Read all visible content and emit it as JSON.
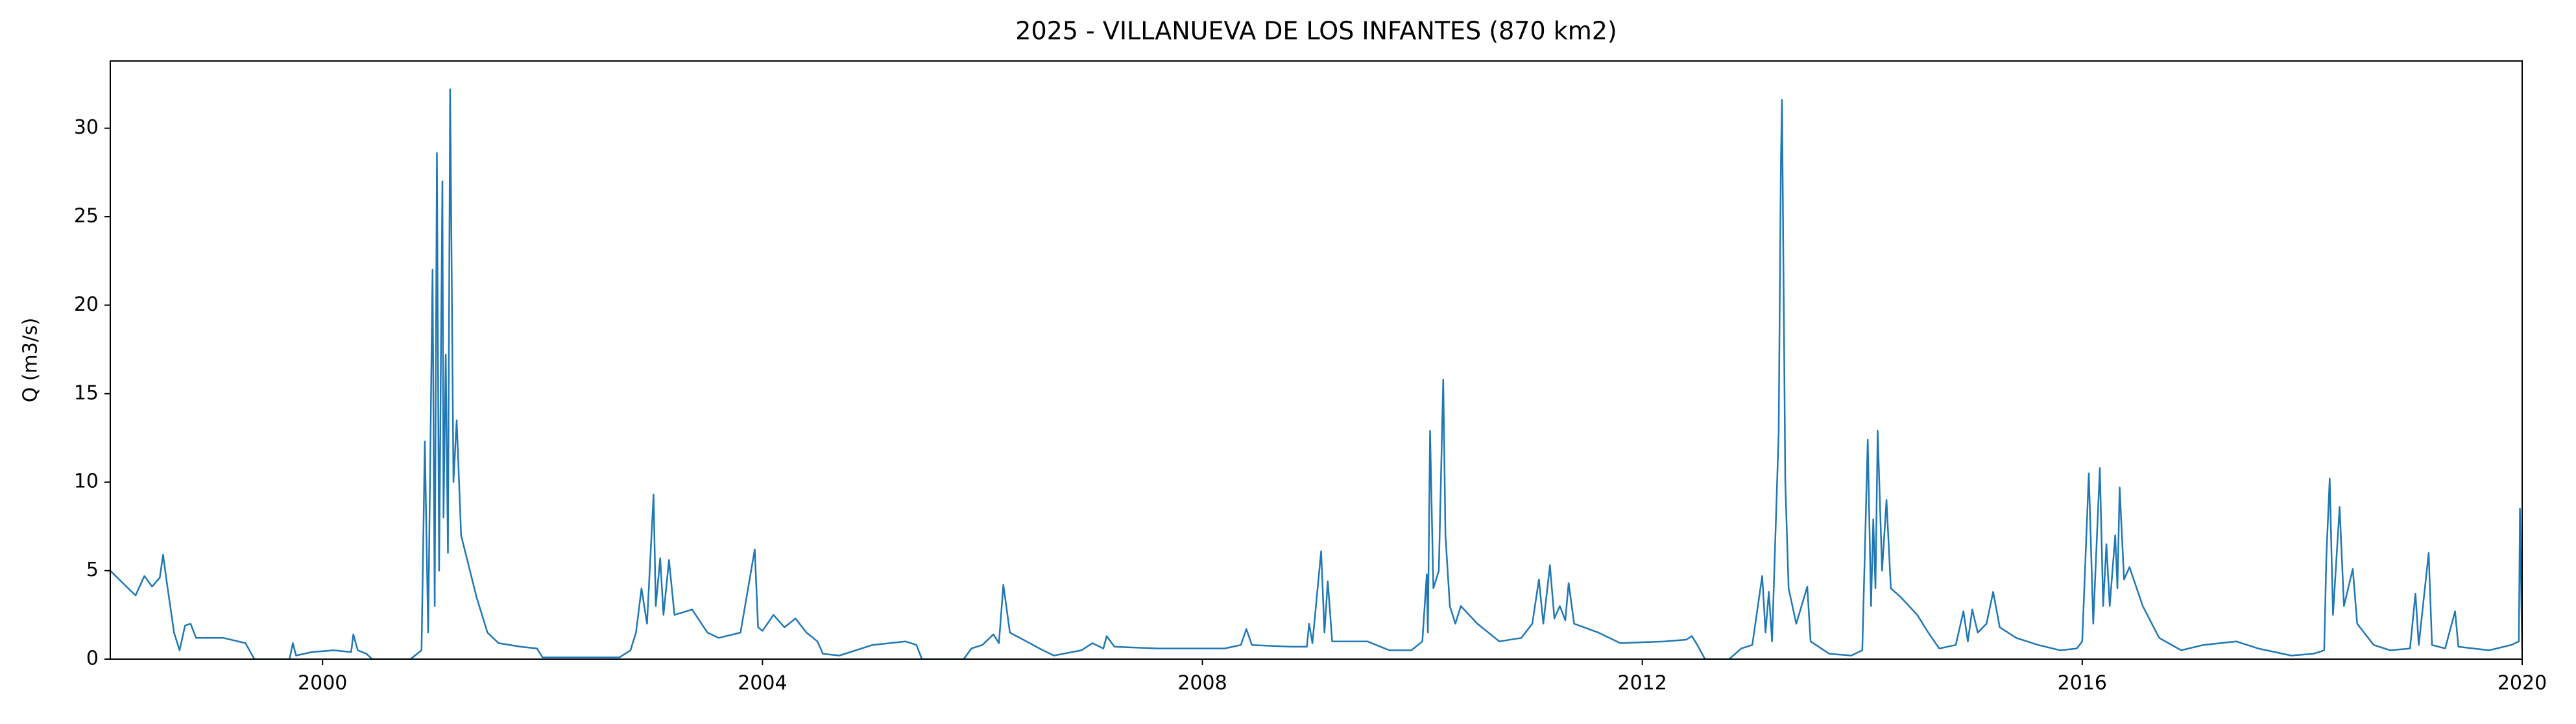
{
  "chart_data": {
    "type": "line",
    "title": "2025 - VILLANUEVA DE LOS INFANTES (870 km2)",
    "y_label": "Q (m3/s)",
    "color": "#1f77b4",
    "xlim": [
      1998.07,
      2020
    ],
    "xticks": [
      2000,
      2004,
      2008,
      2012,
      2016,
      2020
    ],
    "ylim": [
      0,
      33.8
    ],
    "yticks": [
      0,
      5,
      10,
      15,
      20,
      25,
      30
    ],
    "x": [
      1998.07,
      1998.2,
      1998.3,
      1998.38,
      1998.45,
      1998.52,
      1998.55,
      1998.58,
      1998.65,
      1998.7,
      1998.75,
      1998.8,
      1998.85,
      1999.0,
      1999.1,
      1999.3,
      1999.38,
      1999.7,
      1999.73,
      1999.76,
      1999.9,
      2000.1,
      2000.26,
      2000.28,
      2000.32,
      2000.4,
      2000.45,
      2000.8,
      2000.9,
      2000.93,
      2000.96,
      2001.0,
      2001.02,
      2001.04,
      2001.06,
      2001.09,
      2001.1,
      2001.12,
      2001.14,
      2001.16,
      2001.19,
      2001.22,
      2001.26,
      2001.3,
      2001.4,
      2001.5,
      2001.6,
      2001.8,
      2001.95,
      2002.0,
      2002.7,
      2002.8,
      2002.85,
      2002.9,
      2002.95,
      2003.01,
      2003.03,
      2003.07,
      2003.1,
      2003.15,
      2003.2,
      2003.36,
      2003.5,
      2003.6,
      2003.8,
      2003.93,
      2003.96,
      2004.0,
      2004.1,
      2004.2,
      2004.3,
      2004.4,
      2004.5,
      2004.55,
      2004.7,
      2005.0,
      2005.3,
      2005.4,
      2005.45,
      2005.83,
      2005.9,
      2006.0,
      2006.1,
      2006.15,
      2006.19,
      2006.25,
      2006.4,
      2006.55,
      2006.65,
      2006.9,
      2007.0,
      2007.1,
      2007.13,
      2007.2,
      2007.6,
      2007.9,
      2008.2,
      2008.35,
      2008.4,
      2008.45,
      2008.8,
      2008.95,
      2008.97,
      2009.0,
      2009.08,
      2009.11,
      2009.14,
      2009.18,
      2009.5,
      2009.7,
      2009.9,
      2010.0,
      2010.04,
      2010.05,
      2010.07,
      2010.1,
      2010.15,
      2010.19,
      2010.21,
      2010.25,
      2010.3,
      2010.35,
      2010.5,
      2010.7,
      2010.9,
      2011.0,
      2011.06,
      2011.1,
      2011.16,
      2011.2,
      2011.25,
      2011.3,
      2011.33,
      2011.38,
      2011.6,
      2011.8,
      2012.2,
      2012.4,
      2012.45,
      2012.5,
      2012.57,
      2012.79,
      2012.9,
      2013.0,
      2013.09,
      2013.12,
      2013.15,
      2013.18,
      2013.24,
      2013.26,
      2013.27,
      2013.3,
      2013.33,
      2013.4,
      2013.5,
      2013.53,
      2013.7,
      2013.9,
      2014.0,
      2014.05,
      2014.08,
      2014.1,
      2014.12,
      2014.14,
      2014.18,
      2014.22,
      2014.26,
      2014.35,
      2014.5,
      2014.6,
      2014.7,
      2014.85,
      2014.92,
      2014.96,
      2015.0,
      2015.05,
      2015.13,
      2015.19,
      2015.25,
      2015.4,
      2015.6,
      2015.8,
      2015.95,
      2016.0,
      2016.06,
      2016.1,
      2016.16,
      2016.19,
      2016.22,
      2016.25,
      2016.3,
      2016.32,
      2016.34,
      2016.38,
      2016.43,
      2016.55,
      2016.7,
      2016.9,
      2017.1,
      2017.4,
      2017.6,
      2017.9,
      2018.1,
      2018.2,
      2018.22,
      2018.25,
      2018.28,
      2018.34,
      2018.38,
      2018.46,
      2018.5,
      2018.65,
      2018.8,
      2018.98,
      2019.03,
      2019.06,
      2019.15,
      2019.18,
      2019.3,
      2019.39,
      2019.42,
      2019.7,
      2019.9,
      2019.97,
      2019.98,
      2020.0
    ],
    "values": [
      5.0,
      4.2,
      3.6,
      4.7,
      4.1,
      4.6,
      5.9,
      4.5,
      1.5,
      0.5,
      1.9,
      2.0,
      1.2,
      1.2,
      1.2,
      0.9,
      0.0,
      0.0,
      0.9,
      0.2,
      0.4,
      0.5,
      0.4,
      1.4,
      0.5,
      0.3,
      0.0,
      0.0,
      0.5,
      12.3,
      1.5,
      22.0,
      3.0,
      28.6,
      5.0,
      27.0,
      8.0,
      17.2,
      6.0,
      32.2,
      10.0,
      13.5,
      7.0,
      6.0,
      3.5,
      1.5,
      0.9,
      0.7,
      0.6,
      0.1,
      0.1,
      0.5,
      1.5,
      4.0,
      2.0,
      9.3,
      3.0,
      5.7,
      2.5,
      5.6,
      2.5,
      2.8,
      1.5,
      1.2,
      1.5,
      6.2,
      1.8,
      1.6,
      2.5,
      1.8,
      2.3,
      1.5,
      1.0,
      0.3,
      0.2,
      0.8,
      1.0,
      0.8,
      0.0,
      0.0,
      0.6,
      0.8,
      1.4,
      0.9,
      4.2,
      1.5,
      1.0,
      0.5,
      0.2,
      0.5,
      0.9,
      0.6,
      1.3,
      0.7,
      0.6,
      0.6,
      0.6,
      0.8,
      1.7,
      0.8,
      0.7,
      0.7,
      2.0,
      0.9,
      6.1,
      1.5,
      4.4,
      1.0,
      1.0,
      0.5,
      0.5,
      1.0,
      4.8,
      1.5,
      12.9,
      4.0,
      5.0,
      15.8,
      7.0,
      3.0,
      2.0,
      3.0,
      2.0,
      1.0,
      1.2,
      2.0,
      4.5,
      2.0,
      5.3,
      2.3,
      3.0,
      2.2,
      4.3,
      2.0,
      1.5,
      0.9,
      1.0,
      1.1,
      1.3,
      0.8,
      0.0,
      0.0,
      0.6,
      0.8,
      4.7,
      1.5,
      3.8,
      1.0,
      12.8,
      28.0,
      31.6,
      10.0,
      4.0,
      2.0,
      4.1,
      1.0,
      0.3,
      0.2,
      0.5,
      12.4,
      3.0,
      7.9,
      4.0,
      12.9,
      5.0,
      9.0,
      4.0,
      3.5,
      2.5,
      1.5,
      0.6,
      0.8,
      2.7,
      1.0,
      2.8,
      1.5,
      2.0,
      3.8,
      1.8,
      1.2,
      0.8,
      0.5,
      0.6,
      1.0,
      10.5,
      2.0,
      10.8,
      3.0,
      6.5,
      3.0,
      7.0,
      4.0,
      9.7,
      4.5,
      5.2,
      3.0,
      1.2,
      0.5,
      0.8,
      1.0,
      0.6,
      0.2,
      0.3,
      0.5,
      5.8,
      10.2,
      2.5,
      8.6,
      3.0,
      5.1,
      2.0,
      0.8,
      0.5,
      0.6,
      3.7,
      0.8,
      6.0,
      0.8,
      0.6,
      2.7,
      0.7,
      0.5,
      0.8,
      1.0,
      8.5,
      0.5
    ]
  }
}
